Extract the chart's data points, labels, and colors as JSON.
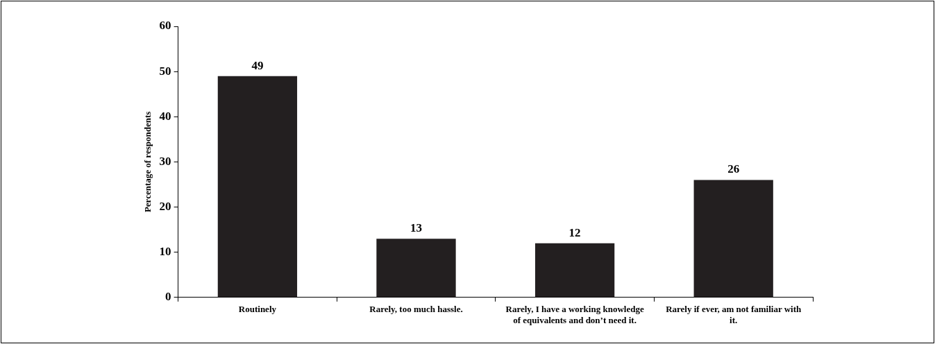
{
  "chart_data": {
    "type": "bar",
    "categories": [
      "Routinely",
      "Rarely, too much hassle.",
      "Rarely, I have a working knowledge of equivalents and don’t need it.",
      "Rarely if ever, am not familiar with it."
    ],
    "values": [
      49,
      13,
      12,
      26
    ],
    "color": "#231f20",
    "ylabel": "Percentage of respondents",
    "ylim": [
      0,
      60
    ],
    "yticks": [
      0,
      10,
      20,
      30,
      40,
      50,
      60
    ],
    "grid": false,
    "data_labels": true,
    "legend": false
  }
}
